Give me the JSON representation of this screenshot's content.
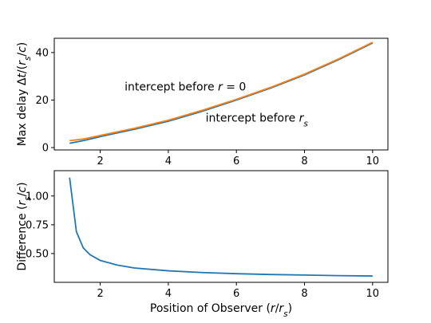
{
  "chart_data": [
    {
      "type": "line",
      "title": "",
      "xlabel": "",
      "ylabel": "Max delay Δt/(r_s/c)",
      "xlim": [
        0.65,
        10.45
      ],
      "ylim": [
        -1.0,
        46.0
      ],
      "xticks": [
        2,
        4,
        6,
        8,
        10
      ],
      "yticks": [
        0,
        20,
        40
      ],
      "grid": false,
      "annotations": [
        {
          "text": "intercept before r = 0",
          "x": 4.5,
          "y": 24.0
        },
        {
          "text": "intercept before r_s",
          "x": 6.6,
          "y": 11.0
        }
      ],
      "series": [
        {
          "color": "#1f77b4",
          "x": [
            1.1,
            1.5,
            2,
            3,
            4,
            5,
            6,
            7,
            8,
            9,
            10
          ],
          "y": [
            1.8,
            2.9,
            4.6,
            7.7,
            11.1,
            15.3,
            20.0,
            25.0,
            30.6,
            37.0,
            44.0
          ]
        },
        {
          "color": "#ff7f0e",
          "x": [
            1.1,
            1.5,
            2,
            3,
            4,
            5,
            6,
            7,
            8,
            9,
            10
          ],
          "y": [
            2.9,
            3.6,
            5.1,
            8.1,
            11.5,
            15.7,
            20.3,
            25.3,
            30.9,
            37.3,
            44.3
          ]
        }
      ]
    },
    {
      "type": "line",
      "title": "",
      "xlabel": "Position of Observer (r/r_s)",
      "ylabel": "Difference (r_s/c)",
      "xlim": [
        0.65,
        10.45
      ],
      "ylim": [
        0.25,
        1.22
      ],
      "xticks": [
        2,
        4,
        6,
        8,
        10
      ],
      "yticks": [
        0.5,
        0.75,
        1.0
      ],
      "grid": false,
      "series": [
        {
          "color": "#1f77b4",
          "x": [
            1.1,
            1.3,
            1.5,
            1.7,
            2.0,
            2.5,
            3.0,
            4.0,
            5.0,
            6.0,
            7.0,
            8.0,
            9.0,
            10.0
          ],
          "y": [
            1.16,
            0.69,
            0.55,
            0.49,
            0.44,
            0.4,
            0.375,
            0.35,
            0.335,
            0.325,
            0.318,
            0.313,
            0.308,
            0.305
          ]
        }
      ]
    }
  ]
}
